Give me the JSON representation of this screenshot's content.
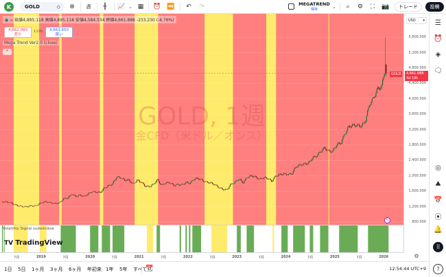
{
  "toolbar": {
    "avatar_letter": "K",
    "symbol": "GOLD",
    "interval": "週",
    "layout_name": "MEGATREND",
    "layout_saved": "保存",
    "trade_label": "トレード",
    "post_label": "投稿"
  },
  "legend": {
    "ohlc": "始値4,895.118 高値4,895.118 安値4,584.534 終値4,661.888 -233.230 (-4.76%)",
    "sell_price": "4,662.080",
    "sell_label": "売り",
    "spread": "1.570",
    "buy_price": "4,663.650",
    "buy_label": "買い",
    "indicator": "Mega Trend Ver2.0 (close)"
  },
  "watermark": {
    "line1": "GOLD, 1週",
    "line2": "金CFD（米ドル／オンス）"
  },
  "subwindow": {
    "title": "Volatility Signal subwindow",
    "logo": "TradingView"
  },
  "price_axis": {
    "currency": "USD",
    "labels": [
      "800.000",
      "1,200.000",
      "1,600.000",
      "2,000.000",
      "2,400.000",
      "2,800.000",
      "3,200.000",
      "3,600.000",
      "4,000.000",
      "4,400.000",
      "4,800.000",
      "5,200.000",
      "5,600.000"
    ],
    "last_symbol": "GOLD",
    "last_price": "4,661.888",
    "countdown": "4d 19h"
  },
  "time_axis": {
    "labels": [
      {
        "text": "7月",
        "t": 2018.5
      },
      {
        "text": "2019",
        "t": 2019.0
      },
      {
        "text": "7月",
        "t": 2019.5
      },
      {
        "text": "2020",
        "t": 2020.0
      },
      {
        "text": "7月",
        "t": 2020.5
      },
      {
        "text": "2021",
        "t": 2021.0
      },
      {
        "text": "7月",
        "t": 2021.5
      },
      {
        "text": "2022",
        "t": 2022.0
      },
      {
        "text": "7月",
        "t": 2022.5
      },
      {
        "text": "2023",
        "t": 2023.0
      },
      {
        "text": "7月",
        "t": 2023.5
      },
      {
        "text": "2024",
        "t": 2024.0
      },
      {
        "text": "7月",
        "t": 2024.5
      },
      {
        "text": "2025",
        "t": 2025.0
      },
      {
        "text": "7月",
        "t": 2025.5
      },
      {
        "text": "2026",
        "t": 2026.0
      }
    ]
  },
  "bottombar": {
    "ranges": [
      "1日",
      "5日",
      "1ヶ月",
      "3ヶ月",
      "6ヶ月",
      "年初来",
      "1年",
      "5年",
      "すべて"
    ],
    "clock": "12:54:44 UTC+9"
  },
  "colors": {
    "bear_band": "#ff7f7f",
    "neutral_band": "#ffeb6b",
    "signal": "#6aac55",
    "candle_up": "#1e6b2e",
    "candle_down": "#8b1e1e",
    "last_price": "#f23645"
  },
  "chart_data": {
    "type": "candlestick",
    "symbol": "GOLD",
    "interval": "1週",
    "xlim": [
      2018.16,
      2026.11
    ],
    "ylim": [
      800,
      5600
    ],
    "monthly_close": [
      [
        "2018-03",
        1325
      ],
      [
        "2018-04",
        1315
      ],
      [
        "2018-05",
        1300
      ],
      [
        "2018-06",
        1255
      ],
      [
        "2018-07",
        1225
      ],
      [
        "2018-08",
        1200
      ],
      [
        "2018-09",
        1192
      ],
      [
        "2018-10",
        1215
      ],
      [
        "2018-11",
        1222
      ],
      [
        "2018-12",
        1280
      ],
      [
        "2019-01",
        1320
      ],
      [
        "2019-02",
        1313
      ],
      [
        "2019-03",
        1292
      ],
      [
        "2019-04",
        1283
      ],
      [
        "2019-05",
        1305
      ],
      [
        "2019-06",
        1409
      ],
      [
        "2019-07",
        1413
      ],
      [
        "2019-08",
        1520
      ],
      [
        "2019-09",
        1472
      ],
      [
        "2019-10",
        1512
      ],
      [
        "2019-11",
        1463
      ],
      [
        "2019-12",
        1517
      ],
      [
        "2020-01",
        1587
      ],
      [
        "2020-02",
        1585
      ],
      [
        "2020-03",
        1577
      ],
      [
        "2020-04",
        1686
      ],
      [
        "2020-05",
        1730
      ],
      [
        "2020-06",
        1780
      ],
      [
        "2020-07",
        1975
      ],
      [
        "2020-08",
        1968
      ],
      [
        "2020-09",
        1886
      ],
      [
        "2020-10",
        1879
      ],
      [
        "2020-11",
        1776
      ],
      [
        "2020-12",
        1895
      ],
      [
        "2021-01",
        1848
      ],
      [
        "2021-02",
        1734
      ],
      [
        "2021-03",
        1708
      ],
      [
        "2021-04",
        1769
      ],
      [
        "2021-05",
        1906
      ],
      [
        "2021-06",
        1770
      ],
      [
        "2021-07",
        1814
      ],
      [
        "2021-08",
        1814
      ],
      [
        "2021-09",
        1743
      ],
      [
        "2021-10",
        1783
      ],
      [
        "2021-11",
        1774
      ],
      [
        "2021-12",
        1829
      ],
      [
        "2022-01",
        1797
      ],
      [
        "2022-02",
        1909
      ],
      [
        "2022-03",
        1937
      ],
      [
        "2022-04",
        1897
      ],
      [
        "2022-05",
        1837
      ],
      [
        "2022-06",
        1807
      ],
      [
        "2022-07",
        1766
      ],
      [
        "2022-08",
        1711
      ],
      [
        "2022-09",
        1660
      ],
      [
        "2022-10",
        1633
      ],
      [
        "2022-11",
        1768
      ],
      [
        "2022-12",
        1824
      ],
      [
        "2023-01",
        1928
      ],
      [
        "2023-02",
        1827
      ],
      [
        "2023-03",
        1969
      ],
      [
        "2023-04",
        1990
      ],
      [
        "2023-05",
        1963
      ],
      [
        "2023-06",
        1919
      ],
      [
        "2023-07",
        1965
      ],
      [
        "2023-08",
        1940
      ],
      [
        "2023-09",
        1849
      ],
      [
        "2023-10",
        1984
      ],
      [
        "2023-11",
        2036
      ],
      [
        "2023-12",
        2063
      ],
      [
        "2024-01",
        2039
      ],
      [
        "2024-02",
        2044
      ],
      [
        "2024-03",
        2230
      ],
      [
        "2024-04",
        2286
      ],
      [
        "2024-05",
        2327
      ],
      [
        "2024-06",
        2326
      ],
      [
        "2024-07",
        2447
      ],
      [
        "2024-08",
        2503
      ],
      [
        "2024-09",
        2634
      ],
      [
        "2024-10",
        2744
      ],
      [
        "2024-11",
        2643
      ],
      [
        "2024-12",
        2625
      ],
      [
        "2025-01",
        2798
      ],
      [
        "2025-02",
        2858
      ],
      [
        "2025-03",
        3124
      ],
      [
        "2025-04",
        3289
      ],
      [
        "2025-05",
        3289
      ],
      [
        "2025-06",
        3303
      ],
      [
        "2025-07",
        3290
      ],
      [
        "2025-08",
        3448
      ],
      [
        "2025-09",
        3858
      ],
      [
        "2025-10",
        4000
      ],
      [
        "2025-11",
        4230
      ],
      [
        "2025-12",
        4330
      ],
      [
        "2026-01",
        4895
      ]
    ],
    "peak_high": 5590,
    "last_bar": {
      "open": 4895.118,
      "high": 4895.118,
      "low": 4584.534,
      "close": 4661.888,
      "change": -233.23,
      "change_pct": -4.76
    },
    "trend_bands_neutral": [
      [
        2018.44,
        2018.96
      ],
      [
        2019.37,
        2019.42
      ],
      [
        2020.2,
        2020.27
      ],
      [
        2020.91,
        2021.39
      ],
      [
        2022.34,
        2022.92
      ],
      [
        2023.6,
        2023.8
      ]
    ],
    "trend_default": "bear",
    "marker_line": 2024.88,
    "subwindow_green": [
      [
        2018.2,
        2018.22
      ],
      [
        2018.24,
        2018.25
      ],
      [
        2019.4,
        2019.71
      ],
      [
        2020.0,
        2020.17
      ],
      [
        2020.24,
        2020.41
      ],
      [
        2020.46,
        2020.7
      ],
      [
        2021.36,
        2021.43
      ],
      [
        2021.83,
        2021.86
      ],
      [
        2021.95,
        2021.98
      ],
      [
        2022.02,
        2022.05
      ],
      [
        2022.09,
        2022.27
      ],
      [
        2023.0,
        2023.08
      ],
      [
        2023.2,
        2023.35
      ],
      [
        2023.91,
        2024.04
      ],
      [
        2024.15,
        2024.39
      ],
      [
        2024.49,
        2024.56
      ],
      [
        2024.7,
        2024.87
      ],
      [
        2025.09,
        2025.47
      ],
      [
        2025.68,
        2026.1
      ]
    ],
    "subwindow_yellow": [
      [
        2018.44,
        2018.73
      ],
      [
        2018.97,
        2019.11
      ],
      [
        2021.16,
        2021.29
      ],
      [
        2022.48,
        2022.8
      ],
      [
        2023.73,
        2023.76
      ]
    ]
  }
}
